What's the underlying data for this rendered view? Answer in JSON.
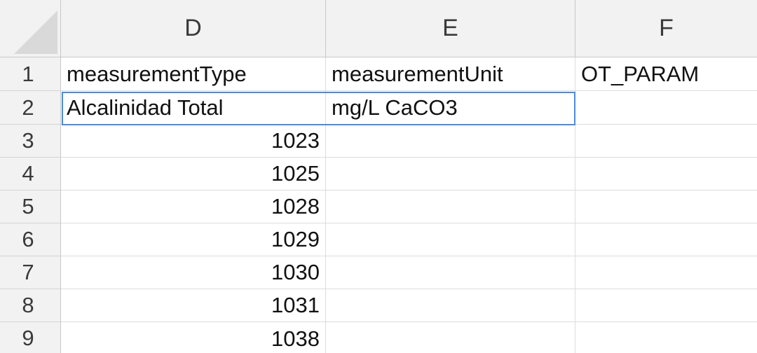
{
  "columns": [
    "D",
    "E",
    "F"
  ],
  "rows": [
    "1",
    "2",
    "3",
    "4",
    "5",
    "6",
    "7",
    "8",
    "9"
  ],
  "cells": {
    "D1": "measurementType",
    "E1": "measurementUnit",
    "F1": "OT_PARAM",
    "D2": "Alcalinidad Total",
    "E2": "mg/L CaCO3",
    "F2": "",
    "D3": "1023",
    "D4": "1025",
    "D5": "1028",
    "D6": "1029",
    "D7": "1030",
    "D8": "1031",
    "D9": "1038"
  },
  "selection": "D2:E2",
  "colors": {
    "selection_border": "#4a8be0",
    "header_bg": "#f2f2f2"
  }
}
